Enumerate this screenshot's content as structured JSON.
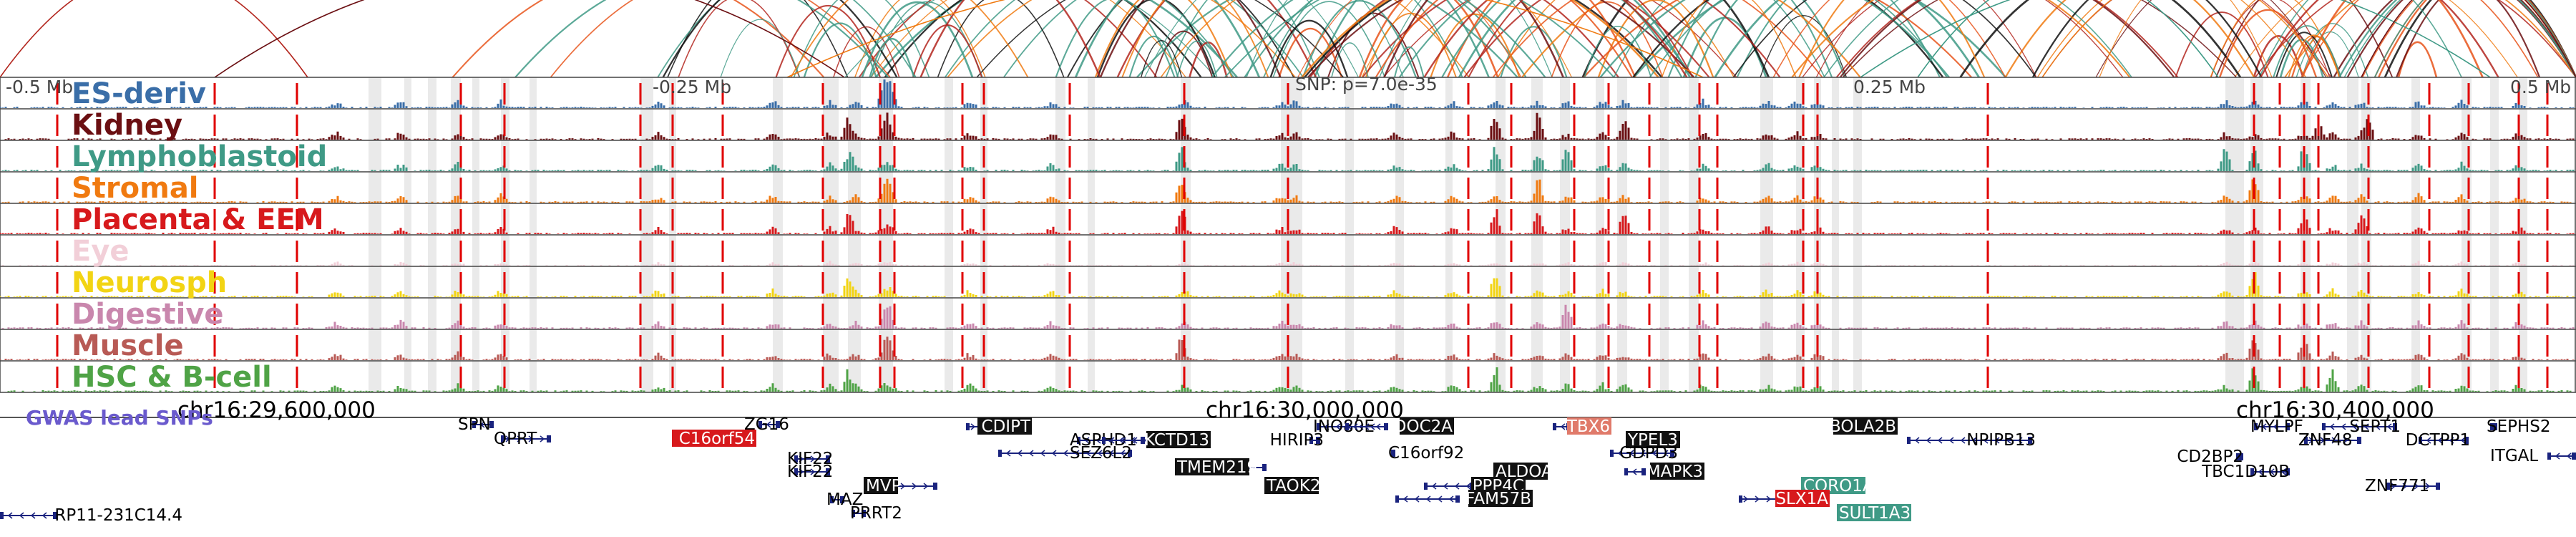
{
  "colors": {
    "ES-deriv": "#3a6ea8",
    "Kidney": "#6b0f12",
    "Lymphoblastoid": "#3f9a86",
    "Stromal": "#f07a10",
    "Placenta & EEM": "#d7191c",
    "Eye": "#f2cfd8",
    "Neurosph": "#f2d414",
    "Digestive": "#c987ad",
    "Muscle": "#b85a55",
    "HSC & B-cell": "#4fa346",
    "marker": "#e00000",
    "gwas": "#6a5acd"
  },
  "tracks": [
    {
      "key": "ES-deriv",
      "label": "ES-deriv"
    },
    {
      "key": "Kidney",
      "label": "Kidney"
    },
    {
      "key": "Lymphoblastoid",
      "label": "Lymphoblastoid"
    },
    {
      "key": "Stromal",
      "label": "Stromal"
    },
    {
      "key": "Placenta & EEM",
      "label": "Placenta & EEM"
    },
    {
      "key": "Eye",
      "label": "Eye"
    },
    {
      "key": "Neurosph",
      "label": "Neurosph"
    },
    {
      "key": "Digestive",
      "label": "Digestive"
    },
    {
      "key": "Muscle",
      "label": "Muscle"
    },
    {
      "key": "HSC & B-cell",
      "label": "HSC & B-cell"
    }
  ],
  "scale_labels": [
    "-0.5 Mb",
    "-0.25 Mb",
    "SNP: p=7.0e-35",
    "0.25 Mb",
    "0.5 Mb"
  ],
  "coordinates": [
    "chr16:29,600,000",
    "chr16:30,000,000",
    "chr16:30,400,000"
  ],
  "gwas_label": "GWAS lead SNPs",
  "genes": [
    {
      "name": "SPN",
      "highlight": "none"
    },
    {
      "name": "QPRT",
      "highlight": "none"
    },
    {
      "name": "ZG16",
      "highlight": "none"
    },
    {
      "name": "C16orf54",
      "highlight": "red"
    },
    {
      "name": "KIF22",
      "highlight": "none"
    },
    {
      "name": "KIF22",
      "highlight": "none"
    },
    {
      "name": "MVP",
      "highlight": "black"
    },
    {
      "name": "MAZ",
      "highlight": "none"
    },
    {
      "name": "PRRT2",
      "highlight": "none"
    },
    {
      "name": "CDIPT",
      "highlight": "black"
    },
    {
      "name": "ASPHD1",
      "highlight": "none"
    },
    {
      "name": "KCTD13",
      "highlight": "black"
    },
    {
      "name": "SEZ6L2",
      "highlight": "none"
    },
    {
      "name": "TMEM219",
      "highlight": "black"
    },
    {
      "name": "TAOK2",
      "highlight": "black"
    },
    {
      "name": "INO80E",
      "highlight": "none"
    },
    {
      "name": "DOC2A",
      "highlight": "black"
    },
    {
      "name": "HIRIP3",
      "highlight": "none"
    },
    {
      "name": "C16orf92",
      "highlight": "none"
    },
    {
      "name": "ALDOA",
      "highlight": "black"
    },
    {
      "name": "PPP4C",
      "highlight": "black"
    },
    {
      "name": "FAM57B",
      "highlight": "black"
    },
    {
      "name": "TBX6",
      "highlight": "salmon"
    },
    {
      "name": "YPEL3",
      "highlight": "black"
    },
    {
      "name": "GDPD3",
      "highlight": "none"
    },
    {
      "name": "MAPK3",
      "highlight": "black"
    },
    {
      "name": "CORO1A",
      "highlight": "teal"
    },
    {
      "name": "SLX1A",
      "highlight": "red"
    },
    {
      "name": "SULT1A3",
      "highlight": "teal"
    },
    {
      "name": "BOLA2B",
      "highlight": "black"
    },
    {
      "name": "NPIPB13",
      "highlight": "none"
    },
    {
      "name": "MYLPF",
      "highlight": "none"
    },
    {
      "name": "SEPT1",
      "highlight": "none"
    },
    {
      "name": "ZNF48",
      "highlight": "none"
    },
    {
      "name": "CD2BP2",
      "highlight": "none"
    },
    {
      "name": "TBC1D10B",
      "highlight": "none"
    },
    {
      "name": "ZNF771",
      "highlight": "none"
    },
    {
      "name": "SEPHS2",
      "highlight": "none"
    },
    {
      "name": "DCTPP1",
      "highlight": "none"
    },
    {
      "name": "ITGAL",
      "highlight": "none"
    },
    {
      "name": "RP11-231C14.4",
      "highlight": "none"
    }
  ]
}
